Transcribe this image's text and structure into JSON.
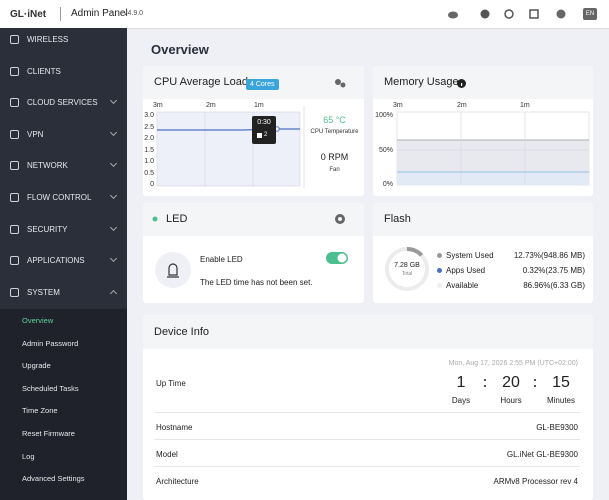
{
  "header": {
    "logo": "GL·iNet",
    "title": "Admin Panel",
    "version": "v4.9.0",
    "language": "EN"
  },
  "sidebar": {
    "items": [
      "WIRELESS",
      "CLIENTS",
      "CLOUD SERVICES",
      "VPN",
      "NETWORK",
      "FLOW CONTROL",
      "SECURITY",
      "APPLICATIONS",
      "SYSTEM"
    ],
    "submenu": [
      "Overview",
      "Admin Password",
      "Upgrade",
      "Scheduled Tasks",
      "Time Zone",
      "Reset Firmware",
      "Log",
      "Advanced Settings"
    ]
  },
  "page_title": "Overview",
  "cpu_card": {
    "title": "CPU Average Load",
    "badge": "4 Cores",
    "x_labels": [
      "3m",
      "2m",
      "1m"
    ],
    "y_labels": [
      "3.0",
      "2.5",
      "2.0",
      "1.5",
      "1.0",
      "0.5",
      "0"
    ],
    "tooltip_time": "0:30",
    "tooltip_value": "2",
    "temperature": "65 °C",
    "temperature_label": "CPU Temperature",
    "fan_speed": "0 RPM",
    "fan_label": "Fan"
  },
  "memory_card": {
    "title": "Memory Usage",
    "x_labels": [
      "3m",
      "2m",
      "1m"
    ],
    "y_labels": [
      "100%",
      "50%",
      "0%"
    ]
  },
  "led_card": {
    "title": "LED",
    "toggle_label": "Enable LED",
    "message": "The LED time has not been set."
  },
  "flash_card": {
    "title": "Flash",
    "total": "7.28 GB",
    "total_label": "Total",
    "legend": [
      {
        "name": "System Used",
        "value": "12.73%(948.86 MB)"
      },
      {
        "name": "Apps Used",
        "value": "0.32%(23.75 MB)"
      },
      {
        "name": "Available",
        "value": "86.96%(6.33 GB)"
      }
    ]
  },
  "device_info": {
    "title": "Device Info",
    "timestamp": "Mon, Aug 17, 2026 2:55 PM (UTC+02:00)",
    "uptime_label": "Up Time",
    "uptime": [
      {
        "value": "1",
        "unit": "Days"
      },
      {
        "value": "20",
        "unit": "Hours"
      },
      {
        "value": "15",
        "unit": "Minutes"
      }
    ],
    "rows": [
      {
        "label": "Hostname",
        "value": "GL-BE9300"
      },
      {
        "label": "Model",
        "value": "GL.iNet GL-BE9300"
      },
      {
        "label": "Architecture",
        "value": "ARMv8 Processor rev 4"
      }
    ]
  }
}
